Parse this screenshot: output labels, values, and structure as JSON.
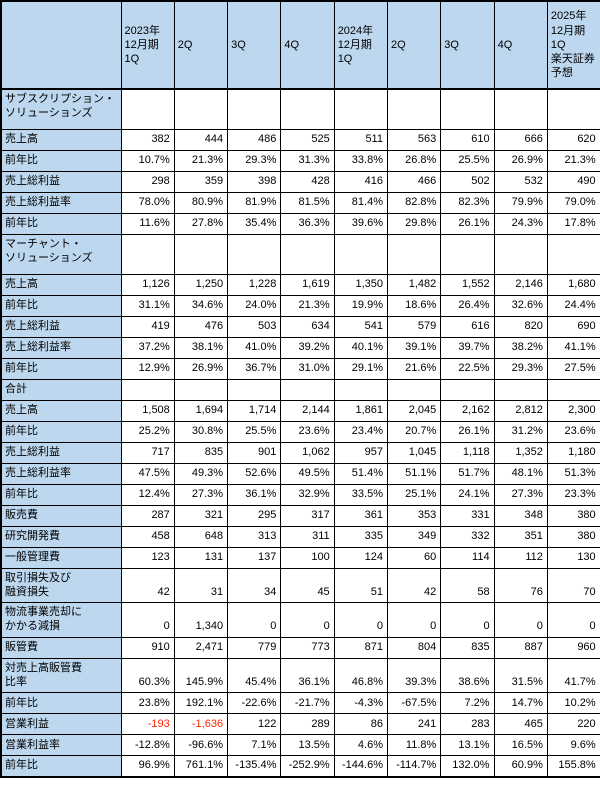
{
  "table": {
    "header_row": [
      "",
      "2023年\n12月期\n1Q",
      "2Q",
      "3Q",
      "4Q",
      "2024年\n12月期\n1Q",
      "2Q",
      "3Q",
      "4Q",
      "2025年\n12月期\n1Q\n楽天証券\n予想"
    ],
    "bold_value_columns": [
      7,
      8
    ],
    "rows": [
      {
        "label": "サブスクリプション・\nソリューションズ",
        "section": true,
        "bold_label": true,
        "values": [
          "",
          "",
          "",
          "",
          "",
          "",
          "",
          "",
          ""
        ]
      },
      {
        "label": "売上高",
        "values": [
          "382",
          "444",
          "486",
          "525",
          "511",
          "563",
          "610",
          "666",
          "620"
        ]
      },
      {
        "label": "前年比",
        "values": [
          "10.7%",
          "21.3%",
          "29.3%",
          "31.3%",
          "33.8%",
          "26.8%",
          "25.5%",
          "26.9%",
          "21.3%"
        ]
      },
      {
        "label": "売上総利益",
        "values": [
          "298",
          "359",
          "398",
          "428",
          "416",
          "466",
          "502",
          "532",
          "490"
        ]
      },
      {
        "label": "売上総利益率",
        "values": [
          "78.0%",
          "80.9%",
          "81.9%",
          "81.5%",
          "81.4%",
          "82.8%",
          "82.3%",
          "79.9%",
          "79.0%"
        ]
      },
      {
        "label": "前年比",
        "values": [
          "11.6%",
          "27.8%",
          "35.4%",
          "36.3%",
          "39.6%",
          "29.8%",
          "26.1%",
          "24.3%",
          "17.8%"
        ]
      },
      {
        "label": "マーチャント・\nソリューションズ",
        "section": true,
        "bold_label": true,
        "values": [
          "",
          "",
          "",
          "",
          "",
          "",
          "",
          "",
          ""
        ]
      },
      {
        "label": "売上高",
        "values": [
          "1,126",
          "1,250",
          "1,228",
          "1,619",
          "1,350",
          "1,482",
          "1,552",
          "2,146",
          "1,680"
        ]
      },
      {
        "label": "前年比",
        "values": [
          "31.1%",
          "34.6%",
          "24.0%",
          "21.3%",
          "19.9%",
          "18.6%",
          "26.4%",
          "32.6%",
          "24.4%"
        ]
      },
      {
        "label": "売上総利益",
        "values": [
          "419",
          "476",
          "503",
          "634",
          "541",
          "579",
          "616",
          "820",
          "690"
        ]
      },
      {
        "label": "売上総利益率",
        "values": [
          "37.2%",
          "38.1%",
          "41.0%",
          "39.2%",
          "40.1%",
          "39.1%",
          "39.7%",
          "38.2%",
          "41.1%"
        ]
      },
      {
        "label": "前年比",
        "values": [
          "12.9%",
          "26.9%",
          "36.7%",
          "31.0%",
          "29.1%",
          "21.6%",
          "22.5%",
          "29.3%",
          "27.5%"
        ]
      },
      {
        "label": "合計",
        "bold_label": true,
        "values": [
          "",
          "",
          "",
          "",
          "",
          "",
          "",
          "",
          ""
        ]
      },
      {
        "label": "売上高",
        "bold_label": true,
        "values": [
          "1,508",
          "1,694",
          "1,714",
          "2,144",
          "1,861",
          "2,045",
          "2,162",
          "2,812",
          "2,300"
        ]
      },
      {
        "label": "前年比",
        "values": [
          "25.2%",
          "30.8%",
          "25.5%",
          "23.6%",
          "23.4%",
          "20.7%",
          "26.1%",
          "31.2%",
          "23.6%"
        ]
      },
      {
        "label": "売上総利益",
        "values": [
          "717",
          "835",
          "901",
          "1,062",
          "957",
          "1,045",
          "1,118",
          "1,352",
          "1,180"
        ]
      },
      {
        "label": "売上総利益率",
        "values": [
          "47.5%",
          "49.3%",
          "52.6%",
          "49.5%",
          "51.4%",
          "51.1%",
          "51.7%",
          "48.1%",
          "51.3%"
        ]
      },
      {
        "label": "前年比",
        "values": [
          "12.4%",
          "27.3%",
          "36.1%",
          "32.9%",
          "33.5%",
          "25.1%",
          "24.1%",
          "27.3%",
          "23.3%"
        ]
      },
      {
        "label": "販売費",
        "values": [
          "287",
          "321",
          "295",
          "317",
          "361",
          "353",
          "331",
          "348",
          "380"
        ]
      },
      {
        "label": "研究開発費",
        "values": [
          "458",
          "648",
          "313",
          "311",
          "335",
          "349",
          "332",
          "351",
          "380"
        ]
      },
      {
        "label": "一般管理費",
        "values": [
          "123",
          "131",
          "137",
          "100",
          "124",
          "60",
          "114",
          "112",
          "130"
        ]
      },
      {
        "label": "取引損失及び\n融資損失",
        "values": [
          "42",
          "31",
          "34",
          "45",
          "51",
          "42",
          "58",
          "76",
          "70"
        ]
      },
      {
        "label": "物流事業売却に\nかかる減損",
        "values": [
          "0",
          "1,340",
          "0",
          "0",
          "0",
          "0",
          "0",
          "0",
          "0"
        ]
      },
      {
        "label": "販管費",
        "values": [
          "910",
          "2,471",
          "779",
          "773",
          "871",
          "804",
          "835",
          "887",
          "960"
        ]
      },
      {
        "label": "対売上高販管費\n比率",
        "values": [
          "60.3%",
          "145.9%",
          "45.4%",
          "36.1%",
          "46.8%",
          "39.3%",
          "38.6%",
          "31.5%",
          "41.7%"
        ]
      },
      {
        "label": "前年比",
        "values": [
          "23.8%",
          "192.1%",
          "-22.6%",
          "-21.7%",
          "-4.3%",
          "-67.5%",
          "7.2%",
          "14.7%",
          "10.2%"
        ]
      },
      {
        "label": "営業利益",
        "bold_label": true,
        "red_negatives": true,
        "values": [
          "-193",
          "-1,636",
          "122",
          "289",
          "86",
          "241",
          "283",
          "465",
          "220"
        ]
      },
      {
        "label": "営業利益率",
        "values": [
          "-12.8%",
          "-96.6%",
          "7.1%",
          "13.5%",
          "4.6%",
          "11.8%",
          "13.1%",
          "16.5%",
          "9.6%"
        ]
      },
      {
        "label": "前年比",
        "values": [
          "96.9%",
          "761.1%",
          "-135.4%",
          "-252.9%",
          "-144.6%",
          "-114.7%",
          "132.0%",
          "60.9%",
          "155.8%"
        ]
      }
    ],
    "colors": {
      "header_background": "#bdd7ee",
      "label_background": "#bdd7ee",
      "border": "#000000",
      "negative_text": "#ff2600"
    }
  }
}
